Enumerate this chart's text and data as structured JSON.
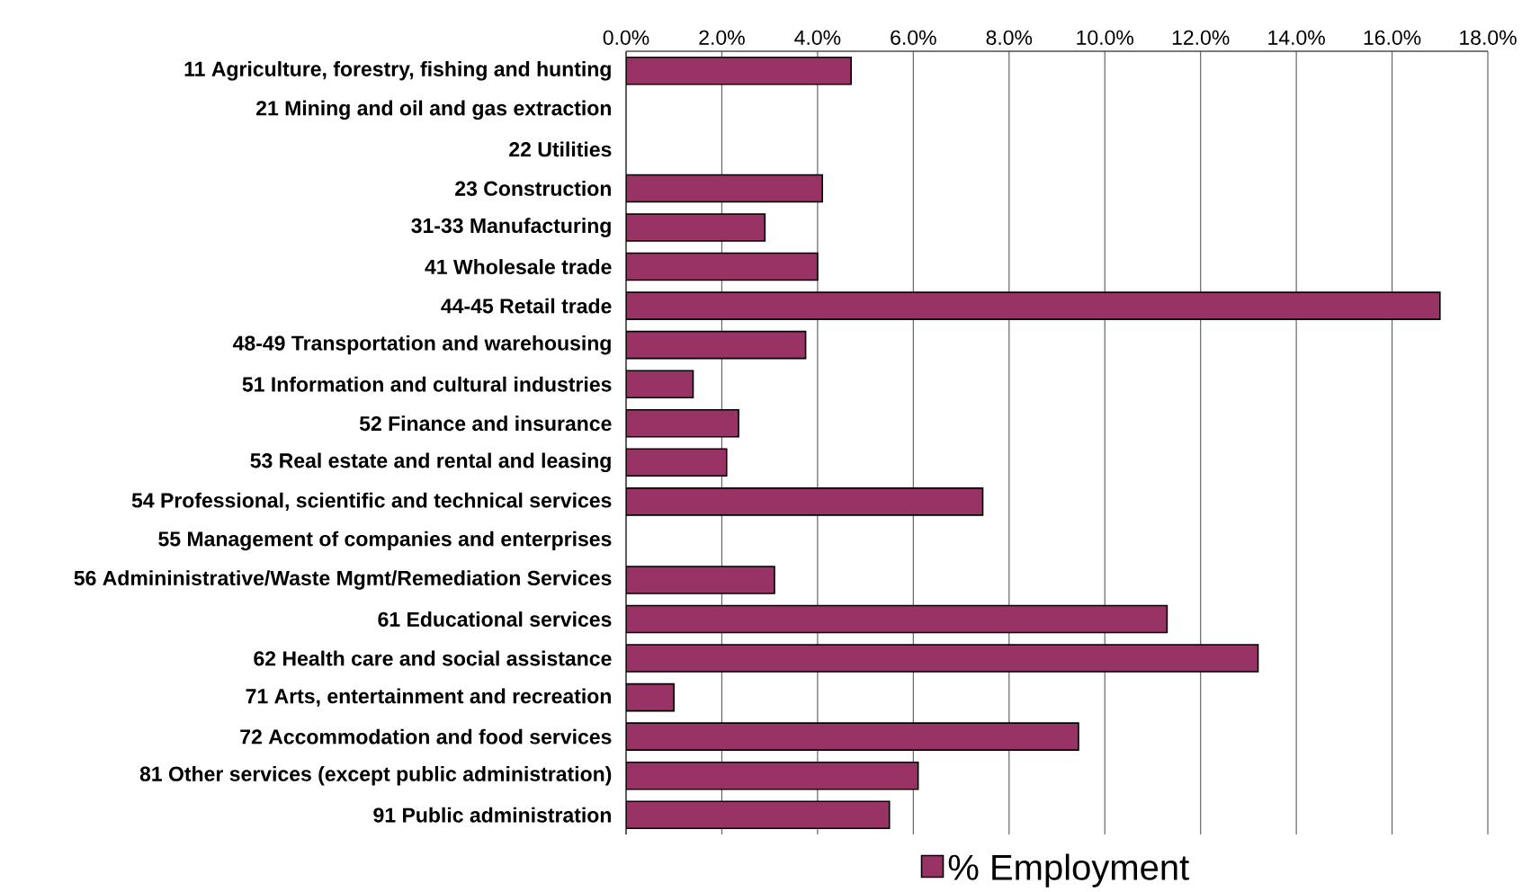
{
  "chart_data": {
    "type": "bar",
    "orientation": "horizontal",
    "categories": [
      "11 Agriculture, forestry, fishing and hunting",
      "21 Mining and oil and gas extraction",
      "22 Utilities",
      "23 Construction",
      "31-33 Manufacturing",
      "41 Wholesale trade",
      "44-45 Retail trade",
      "48-49 Transportation and warehousing",
      "51 Information and cultural industries",
      "52 Finance and insurance",
      "53 Real estate and rental and leasing",
      "54 Professional, scientific and technical services",
      "55 Management of companies and enterprises",
      "56 Admininistrative/Waste Mgmt/Remediation Services",
      "61 Educational services",
      "62 Health care and social assistance",
      "71 Arts, entertainment and recreation",
      "72 Accommodation and food services",
      "81 Other services (except public administration)",
      "91 Public administration"
    ],
    "series": [
      {
        "name": "% Employment",
        "color": "#993366",
        "values": [
          4.7,
          null,
          null,
          4.1,
          2.9,
          4.0,
          17.0,
          3.75,
          1.4,
          2.35,
          2.1,
          7.45,
          null,
          3.1,
          11.3,
          13.2,
          1.0,
          9.45,
          6.1,
          5.5
        ]
      }
    ],
    "xlim": [
      0,
      18
    ],
    "xticks": [
      {
        "value": 0,
        "label": "0.0%"
      },
      {
        "value": 2,
        "label": "2.0%"
      },
      {
        "value": 4,
        "label": "4.0%"
      },
      {
        "value": 6,
        "label": "6.0%"
      },
      {
        "value": 8,
        "label": "8.0%"
      },
      {
        "value": 10,
        "label": "10.0%"
      },
      {
        "value": 12,
        "label": "12.0%"
      },
      {
        "value": 14,
        "label": "14.0%"
      },
      {
        "value": 16,
        "label": "16.0%"
      },
      {
        "value": 18,
        "label": "18.0%"
      }
    ],
    "grid": "x",
    "legend": "bottom"
  }
}
